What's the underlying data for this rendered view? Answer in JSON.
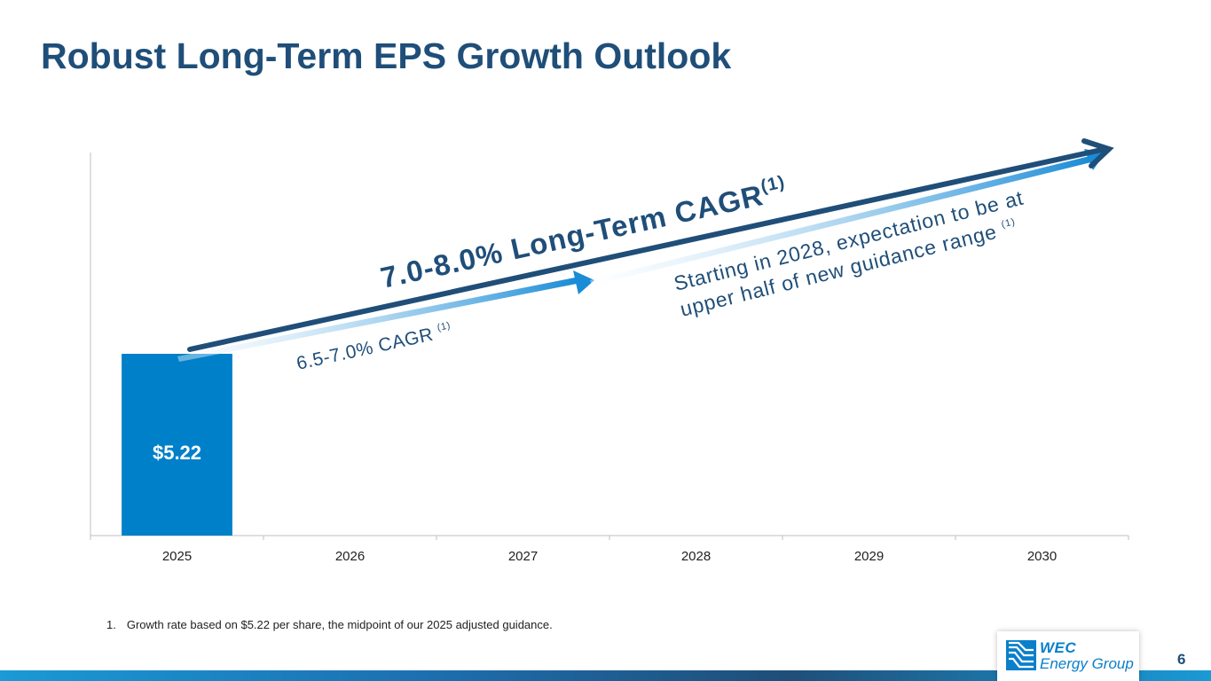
{
  "slide": {
    "title": "Robust Long-Term EPS Growth Outlook",
    "footnote_number": "1.",
    "footnote_text": "Growth rate based on $5.22 per share, the midpoint of our 2025 adjusted guidance.",
    "page_number": "6",
    "logo_line1": "WEC",
    "logo_line2": "Energy Group"
  },
  "chart_data": {
    "type": "bar",
    "title": "",
    "categories": [
      "2025",
      "2026",
      "2027",
      "2028",
      "2029",
      "2030"
    ],
    "values": [
      5.22,
      null,
      null,
      null,
      null,
      null
    ],
    "data_labels": [
      "$5.22",
      "",
      "",
      "",
      "",
      ""
    ],
    "ylim": [
      0,
      11
    ],
    "xlabel": "",
    "ylabel": "",
    "bar_color": "#0080c9",
    "annotations": {
      "long_term_main": "7.0-8.0% Long-Term CAGR",
      "long_term_sup": "(1)",
      "short_term_main": "6.5-7.0% CAGR ",
      "short_term_sup": "(1)",
      "upper_line1": "Starting in 2028, expectation to be at",
      "upper_line2_main": "upper half of new guidance range ",
      "upper_line2_sup": "(1)"
    },
    "colors": {
      "dark_arrow": "#1f4e79",
      "light_arrow": "#1a8bd6",
      "axis": "#bfbfbf"
    }
  }
}
